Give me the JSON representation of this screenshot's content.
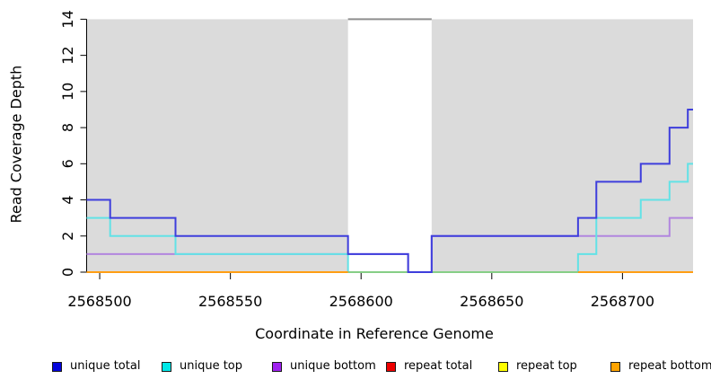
{
  "chart_data": {
    "type": "line",
    "title": "",
    "xlabel": "Coordinate in Reference Genome",
    "ylabel": "Read Coverage Depth",
    "xlim": [
      2568495,
      2568727
    ],
    "ylim": [
      0,
      14
    ],
    "x_ticks": [
      2568500,
      2568550,
      2568600,
      2568650,
      2568700
    ],
    "y_ticks": [
      0,
      2,
      4,
      6,
      8,
      10,
      12,
      14
    ],
    "grid": false,
    "legend_position": "bottom",
    "shaded_regions": [
      {
        "name": "repeat-region-left",
        "x0": 2568495,
        "x1": 2568595,
        "color": "#DBDBDB"
      },
      {
        "name": "repeat-region-right",
        "x0": 2568627,
        "x1": 2568727,
        "color": "#DBDBDB"
      }
    ],
    "clip_cap_line": {
      "x0": 2568595,
      "x1": 2568627,
      "y": 14,
      "color": "#8F8F8F"
    },
    "draw_order": [
      "repeat total",
      "repeat top",
      "unique bottom",
      "unique top",
      "overlap baseline",
      "unique total",
      "repeat bottom"
    ],
    "series": [
      {
        "name": "unique total",
        "label": "unique total",
        "color": "#3E3EDC",
        "legend_color": "#0505DC",
        "in_legend": true,
        "segments": [
          {
            "end": 2568727,
            "steps": [
              [
                2568495,
                4
              ],
              [
                2568504,
                3
              ],
              [
                2568529,
                2
              ],
              [
                2568595,
                1
              ],
              [
                2568618,
                0
              ],
              [
                2568627,
                2
              ],
              [
                2568683,
                3
              ],
              [
                2568690,
                5
              ],
              [
                2568707,
                6
              ],
              [
                2568718,
                8
              ],
              [
                2568725,
                9
              ]
            ]
          }
        ]
      },
      {
        "name": "unique top",
        "label": "unique top",
        "color": "#62E2E6",
        "legend_color": "#00E8E8",
        "in_legend": true,
        "segments": [
          {
            "end": 2568727,
            "steps": [
              [
                2568495,
                3
              ],
              [
                2568504,
                2
              ],
              [
                2568529,
                1
              ],
              [
                2568595,
                0
              ],
              [
                2568683,
                1
              ],
              [
                2568690,
                3
              ],
              [
                2568707,
                4
              ],
              [
                2568718,
                5
              ],
              [
                2568725,
                6
              ]
            ]
          }
        ]
      },
      {
        "name": "unique bottom",
        "label": "unique bottom",
        "color": "#B286DF",
        "legend_color": "#A021F0",
        "in_legend": true,
        "segments": [
          {
            "end": 2568727,
            "steps": [
              [
                2568495,
                1
              ],
              [
                2568618,
                0
              ],
              [
                2568627,
                2
              ],
              [
                2568718,
                3
              ]
            ]
          }
        ]
      },
      {
        "name": "repeat total",
        "label": "repeat total",
        "color": "#EE0000",
        "legend_color": "#EE0000",
        "in_legend": true,
        "segments": [
          {
            "end": 2568595,
            "steps": [
              [
                2568495,
                0
              ]
            ]
          },
          {
            "end": 2568727,
            "steps": [
              [
                2568683,
                0
              ]
            ]
          }
        ]
      },
      {
        "name": "repeat top",
        "label": "repeat top",
        "color": "#FFFF00",
        "legend_color": "#FFFF00",
        "in_legend": true,
        "segments": [
          {
            "end": 2568595,
            "steps": [
              [
                2568495,
                0
              ]
            ]
          },
          {
            "end": 2568727,
            "steps": [
              [
                2568683,
                0
              ]
            ]
          }
        ]
      },
      {
        "name": "repeat bottom",
        "label": "repeat bottom",
        "color": "#FF9E13",
        "legend_color": "#FFA400",
        "in_legend": true,
        "segments": [
          {
            "end": 2568595,
            "steps": [
              [
                2568495,
                0
              ]
            ]
          },
          {
            "end": 2568727,
            "steps": [
              [
                2568683,
                0
              ]
            ]
          }
        ]
      },
      {
        "name": "overlap baseline",
        "label": "",
        "color": "#86CE86",
        "legend_color": "#86CE86",
        "in_legend": false,
        "segments": [
          {
            "end": 2568683,
            "steps": [
              [
                2568595,
                0
              ]
            ]
          }
        ]
      }
    ]
  },
  "labels": {
    "x_axis_title": "Coordinate in Reference Genome",
    "y_axis_title": "Read Coverage Depth"
  }
}
